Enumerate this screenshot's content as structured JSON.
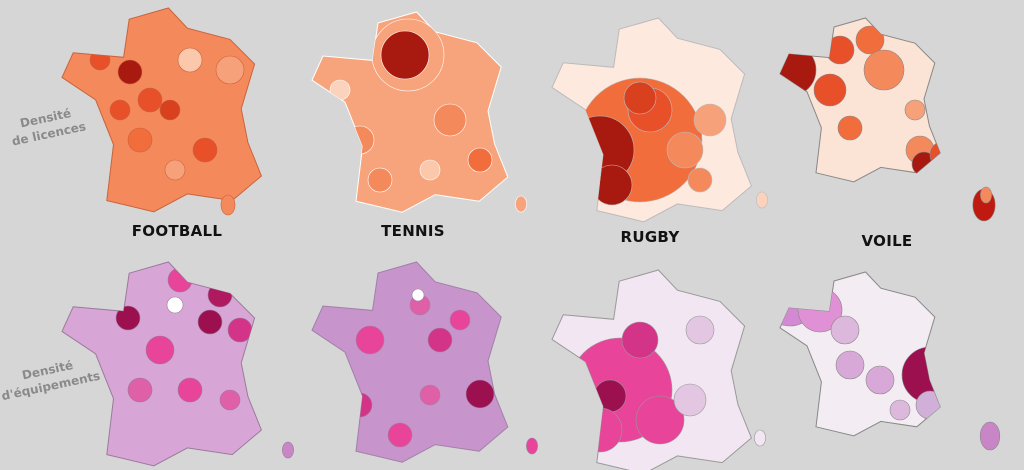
{
  "row_labels": [
    [
      "Densité",
      "de licences"
    ],
    [
      "Densité",
      "d'équipements"
    ]
  ],
  "sports": [
    "FOOTBALL",
    "TENNIS",
    "RUGBY",
    "VOILE"
  ]
}
